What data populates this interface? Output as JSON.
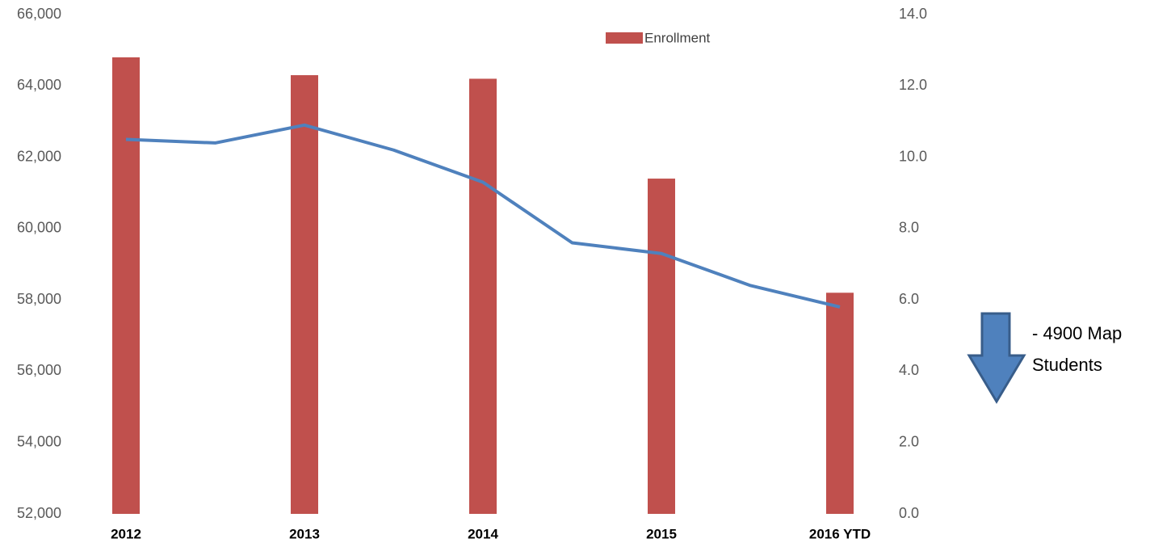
{
  "chart_data": {
    "type": "bar-line",
    "categories": [
      "2012",
      null,
      "2013",
      null,
      "2014",
      null,
      "2015",
      null,
      "2016 YTD"
    ],
    "series": [
      {
        "name": "Enrollment",
        "type": "bar",
        "color": "#c0504d",
        "values": [
          64800,
          null,
          64300,
          null,
          64200,
          null,
          61400,
          null,
          58200
        ]
      },
      {
        "type": "line",
        "axis": "y2",
        "color": "#4f81bd",
        "values": [
          10.5,
          10.4,
          10.9,
          10.2,
          9.3,
          7.6,
          7.3,
          6.4,
          5.8
        ]
      }
    ],
    "ylim": [
      52000,
      66000
    ],
    "yticks": [
      {
        "value": 52000,
        "label": "52,000"
      },
      {
        "value": 54000,
        "label": "54,000"
      },
      {
        "value": 56000,
        "label": "56,000"
      },
      {
        "value": 58000,
        "label": "58,000"
      },
      {
        "value": 60000,
        "label": "60,000"
      },
      {
        "value": 62000,
        "label": "62,000"
      },
      {
        "value": 64000,
        "label": "64,000"
      },
      {
        "value": 66000,
        "label": "66,000"
      }
    ],
    "y2lim": [
      0,
      14
    ],
    "y2ticks": [
      {
        "value": 0,
        "label": "0.0"
      },
      {
        "value": 2,
        "label": "2.0"
      },
      {
        "value": 4,
        "label": "4.0"
      },
      {
        "value": 6,
        "label": "6.0"
      },
      {
        "value": 8,
        "label": "8.0"
      },
      {
        "value": 10,
        "label": "10.0"
      },
      {
        "value": 12,
        "label": "12.0"
      },
      {
        "value": 14,
        "label": "14.0"
      }
    ],
    "grid": false,
    "legend": "top",
    "annotation": [
      "- 4900 Map",
      "Students"
    ]
  }
}
